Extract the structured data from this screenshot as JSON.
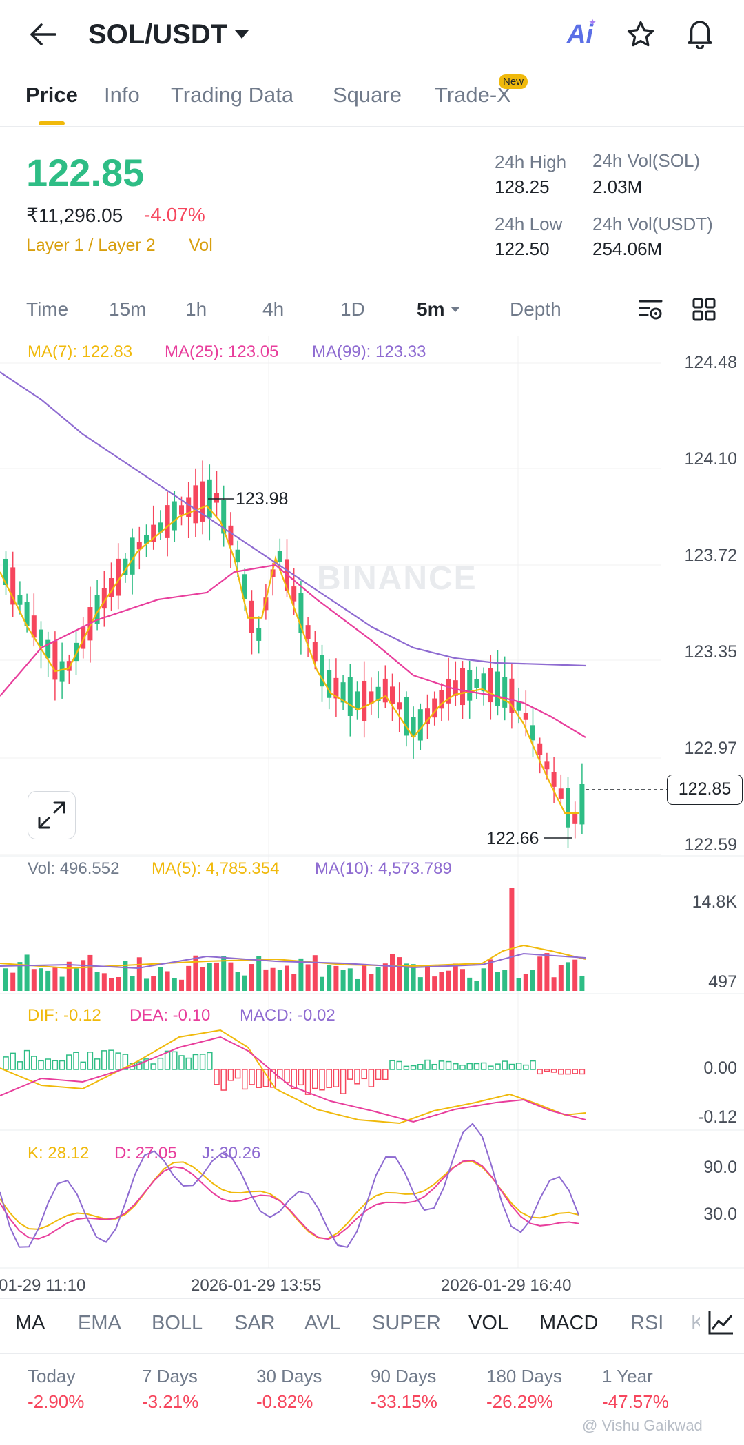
{
  "header": {
    "pair": "SOL/USDT",
    "ai_label": "Ai"
  },
  "tabs": [
    {
      "label": "Price",
      "active": true
    },
    {
      "label": "Info"
    },
    {
      "label": "Trading Data"
    },
    {
      "label": "Square"
    },
    {
      "label": "Trade-X",
      "badge": "New"
    }
  ],
  "ticker": {
    "price": "122.85",
    "inr_price": "₹11,296.05",
    "change": "-4.07%",
    "tags": "Layer 1 / Layer 2",
    "vol_tag": "Vol",
    "high_label": "24h High",
    "high_value": "128.25",
    "low_label": "24h Low",
    "low_value": "122.50",
    "vol_sol_label": "24h Vol(SOL)",
    "vol_sol_value": "2.03M",
    "vol_usdt_label": "24h Vol(USDT)",
    "vol_usdt_value": "254.06M"
  },
  "timeframes": [
    "Time",
    "15m",
    "1h",
    "4h",
    "1D",
    "5m",
    "Depth"
  ],
  "main_chart": {
    "ma7": "MA(7): 122.83",
    "ma25": "MA(25): 123.05",
    "ma99": "MA(99): 123.33",
    "high_marker": "123.98",
    "low_marker": "122.66",
    "last_price": "122.85",
    "axis": [
      "124.48",
      "124.10",
      "123.72",
      "123.35",
      "122.97",
      "122.59"
    ],
    "watermark": "BINANCE"
  },
  "vol_chart": {
    "vol": "Vol: 496.552",
    "ma5": "MA(5): 4,785.354",
    "ma10": "MA(10): 4,573.789",
    "axis_top": "14.8K",
    "axis_bottom": "497"
  },
  "macd_chart": {
    "dif": "DIF: -0.12",
    "dea": "DEA: -0.10",
    "macd": "MACD: -0.02",
    "axis_top": "0.00",
    "axis_bottom": "-0.12"
  },
  "kdj_chart": {
    "k": "K: 28.12",
    "d": "D: 27.05",
    "j": "J: 30.26",
    "axis_top": "90.0",
    "axis_bottom": "30.0"
  },
  "time_axis": [
    "01-29 11:10",
    "2026-01-29 13:55",
    "2026-01-29 16:40"
  ],
  "indicators": [
    "MA",
    "EMA",
    "BOLL",
    "SAR",
    "AVL",
    "SUPER",
    "VOL",
    "MACD",
    "RSI",
    "K"
  ],
  "performance": [
    {
      "label": "Today",
      "value": "-2.90%"
    },
    {
      "label": "7 Days",
      "value": "-3.21%"
    },
    {
      "label": "30 Days",
      "value": "-0.82%"
    },
    {
      "label": "90 Days",
      "value": "-33.15%"
    },
    {
      "label": "180 Days",
      "value": "-26.29%"
    },
    {
      "label": "1 Year",
      "value": "-47.57%"
    }
  ],
  "watermark_credit": "@ Vishu Gaikwad",
  "colors": {
    "up": "#2ebd85",
    "down": "#f6465d",
    "ma7": "#f0b90b",
    "ma25": "#e83e9c",
    "ma99": "#8e6bd1",
    "accent": "#f0b90b"
  }
}
